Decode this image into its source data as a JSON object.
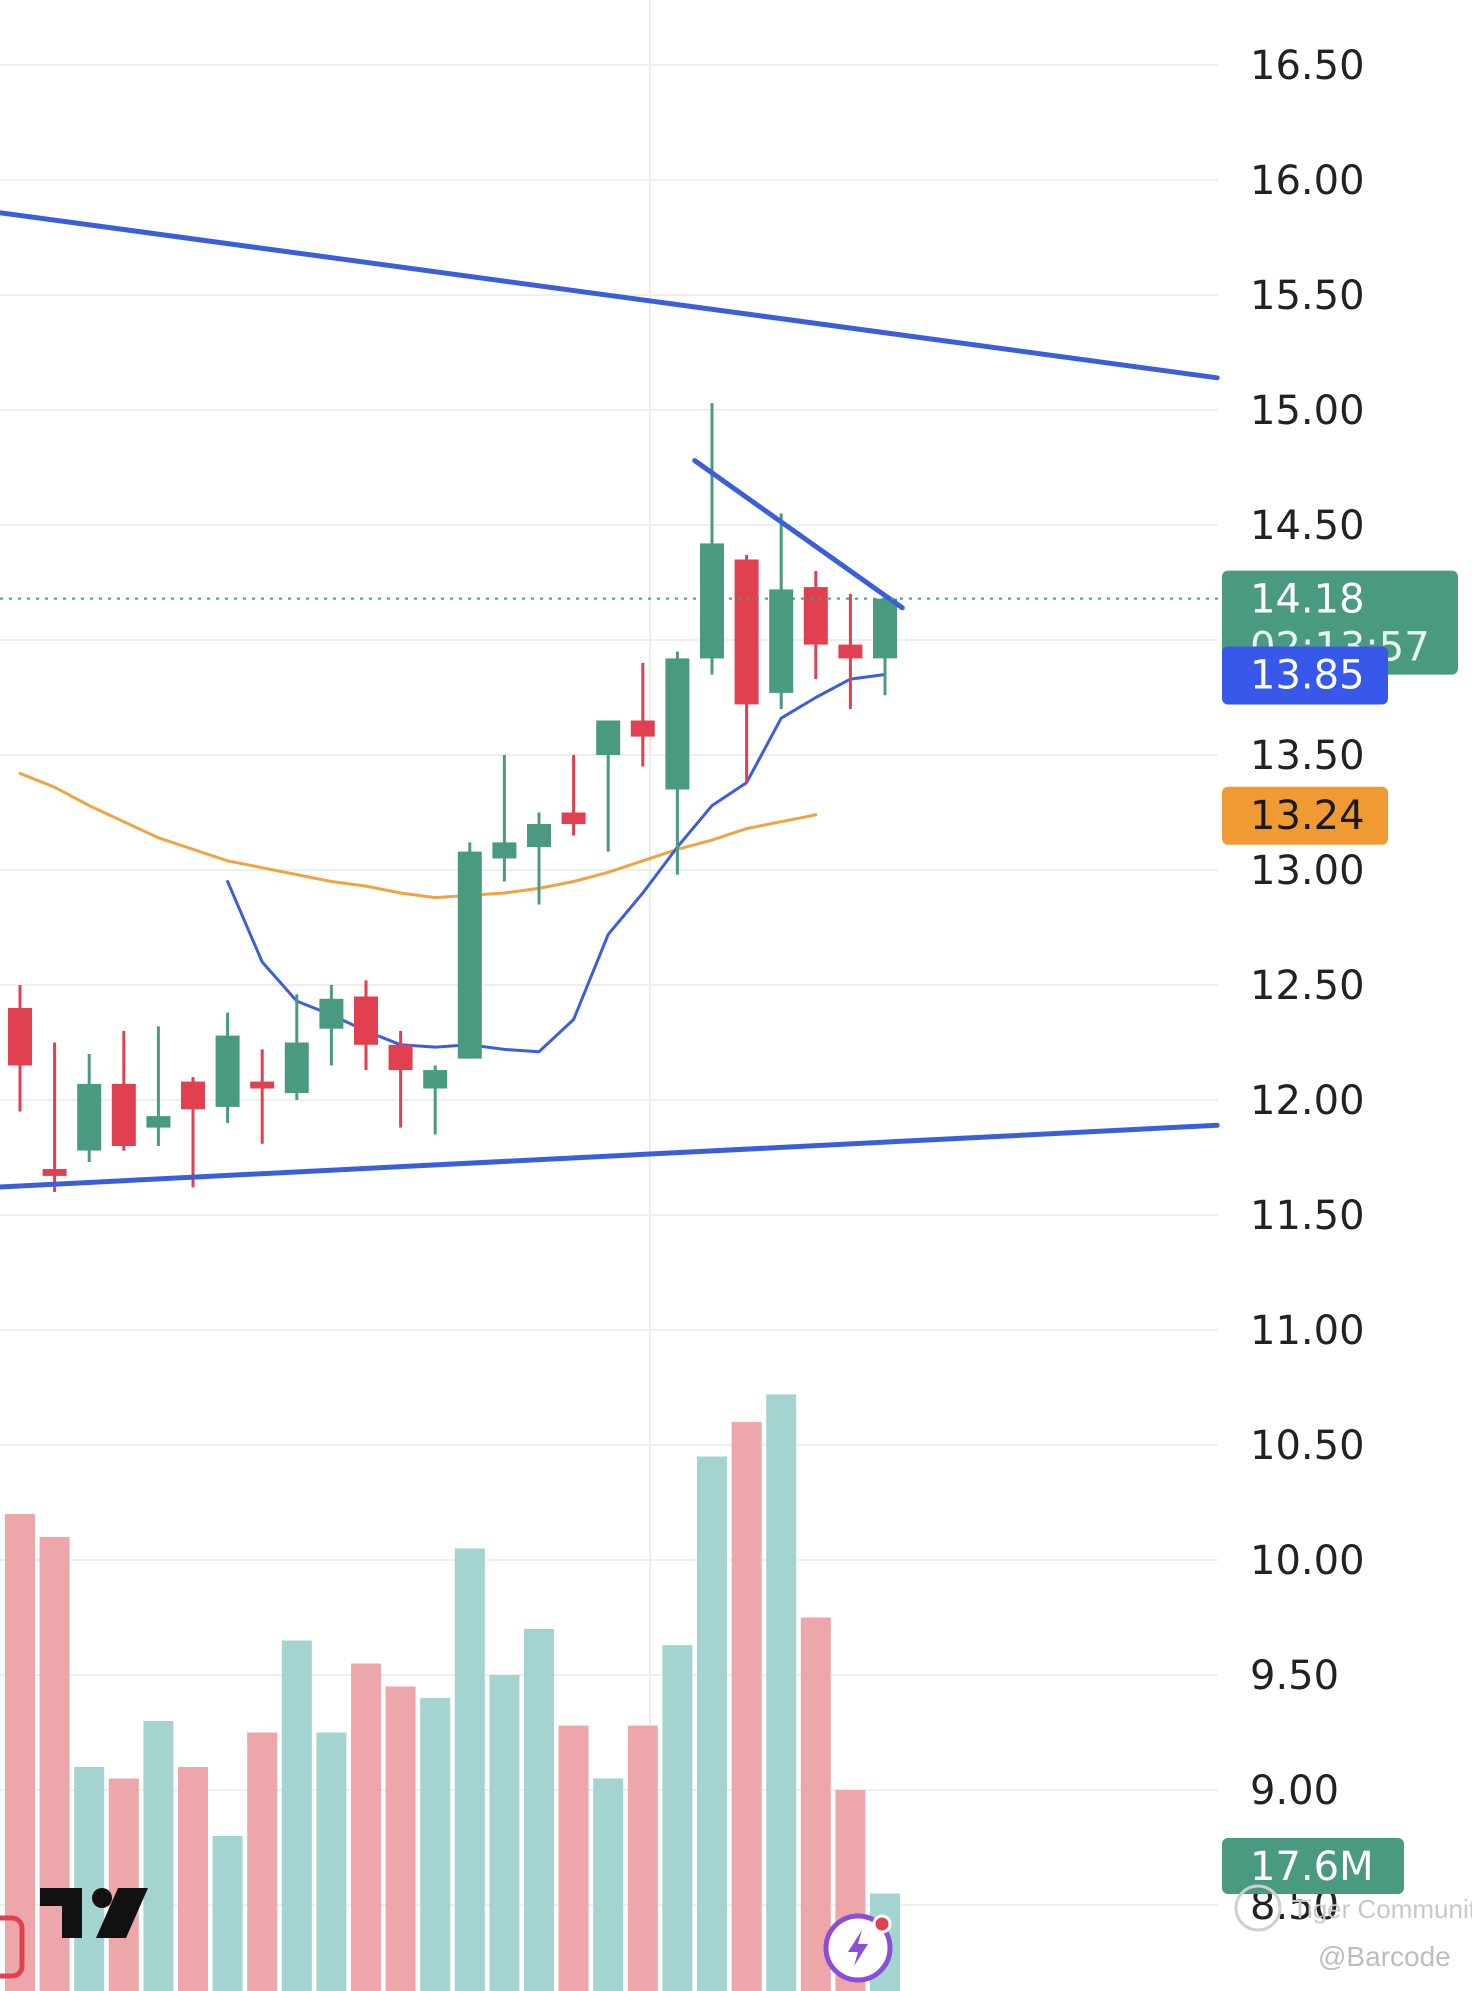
{
  "chart_data": {
    "type": "candlestick",
    "price_axis": {
      "ticks": [
        "16.50",
        "16.00",
        "15.50",
        "15.00",
        "14.50",
        "14.00",
        "13.50",
        "13.00",
        "12.50",
        "12.00",
        "11.50",
        "11.00",
        "10.50",
        "10.00",
        "9.50",
        "9.00",
        "8.50"
      ],
      "range": [
        8.2,
        16.75
      ]
    },
    "last_price": "14.18",
    "countdown": "02:13:57",
    "ma_fast_value": "13.85",
    "ma_slow_value": "13.24",
    "volume_label": "17.6M",
    "candles": [
      {
        "o": 12.4,
        "h": 12.5,
        "l": 11.95,
        "c": 12.15
      },
      {
        "o": 11.7,
        "h": 12.25,
        "l": 11.6,
        "c": 11.67
      },
      {
        "o": 11.78,
        "h": 12.2,
        "l": 11.73,
        "c": 12.07
      },
      {
        "o": 12.07,
        "h": 12.3,
        "l": 11.78,
        "c": 11.8
      },
      {
        "o": 11.88,
        "h": 12.32,
        "l": 11.8,
        "c": 11.93
      },
      {
        "o": 12.08,
        "h": 12.1,
        "l": 11.62,
        "c": 11.96
      },
      {
        "o": 11.97,
        "h": 12.38,
        "l": 11.9,
        "c": 12.28
      },
      {
        "o": 12.08,
        "h": 12.22,
        "l": 11.81,
        "c": 12.05
      },
      {
        "o": 12.03,
        "h": 12.46,
        "l": 12.0,
        "c": 12.25
      },
      {
        "o": 12.31,
        "h": 12.5,
        "l": 12.15,
        "c": 12.44
      },
      {
        "o": 12.45,
        "h": 12.52,
        "l": 12.13,
        "c": 12.24
      },
      {
        "o": 12.24,
        "h": 12.3,
        "l": 11.88,
        "c": 12.13
      },
      {
        "o": 12.05,
        "h": 12.15,
        "l": 11.85,
        "c": 12.13
      },
      {
        "o": 12.18,
        "h": 13.12,
        "l": 12.18,
        "c": 13.08
      },
      {
        "o": 13.05,
        "h": 13.5,
        "l": 12.95,
        "c": 13.12
      },
      {
        "o": 13.1,
        "h": 13.25,
        "l": 12.85,
        "c": 13.2
      },
      {
        "o": 13.25,
        "h": 13.5,
        "l": 13.15,
        "c": 13.2
      },
      {
        "o": 13.5,
        "h": 13.65,
        "l": 13.08,
        "c": 13.65
      },
      {
        "o": 13.65,
        "h": 13.9,
        "l": 13.45,
        "c": 13.58
      },
      {
        "o": 13.35,
        "h": 13.95,
        "l": 12.98,
        "c": 13.92
      },
      {
        "o": 13.92,
        "h": 15.03,
        "l": 13.85,
        "c": 14.42
      },
      {
        "o": 14.35,
        "h": 14.37,
        "l": 13.38,
        "c": 13.72
      },
      {
        "o": 13.77,
        "h": 14.55,
        "l": 13.7,
        "c": 14.22
      },
      {
        "o": 14.23,
        "h": 14.3,
        "l": 13.83,
        "c": 13.98
      },
      {
        "o": 13.98,
        "h": 14.2,
        "l": 13.7,
        "c": 13.92
      },
      {
        "o": 13.92,
        "h": 14.2,
        "l": 13.76,
        "c": 14.18
      }
    ],
    "ma_fast": [
      12.95,
      12.6,
      12.43,
      12.37,
      12.3,
      12.24,
      12.23,
      12.24,
      12.22,
      12.21,
      12.35,
      12.72,
      12.9,
      13.1,
      13.28,
      13.38,
      13.66,
      13.75,
      13.83,
      13.85
    ],
    "ma_slow_x_start": 0,
    "ma_slow": [
      13.42,
      13.36,
      13.28,
      13.21,
      13.14,
      13.09,
      13.04,
      13.01,
      12.98,
      12.95,
      12.93,
      12.9,
      12.88,
      12.89,
      12.9,
      12.92,
      12.95,
      12.99,
      13.04,
      13.09,
      13.13,
      13.18,
      13.21,
      13.24
    ],
    "volume": [
      {
        "v": 10.2,
        "up": false
      },
      {
        "v": 10.1,
        "up": false
      },
      {
        "v": 9.1,
        "up": true
      },
      {
        "v": 9.05,
        "up": false
      },
      {
        "v": 9.3,
        "up": true
      },
      {
        "v": 9.1,
        "up": false
      },
      {
        "v": 8.8,
        "up": true
      },
      {
        "v": 9.25,
        "up": false
      },
      {
        "v": 9.65,
        "up": true
      },
      {
        "v": 9.25,
        "up": true
      },
      {
        "v": 9.55,
        "up": false
      },
      {
        "v": 9.45,
        "up": false
      },
      {
        "v": 9.4,
        "up": true
      },
      {
        "v": 10.05,
        "up": true
      },
      {
        "v": 9.5,
        "up": true
      },
      {
        "v": 9.7,
        "up": true
      },
      {
        "v": 9.28,
        "up": false
      },
      {
        "v": 9.05,
        "up": true
      },
      {
        "v": 9.28,
        "up": false
      },
      {
        "v": 9.63,
        "up": true
      },
      {
        "v": 10.45,
        "up": true
      },
      {
        "v": 10.6,
        "up": false
      },
      {
        "v": 10.72,
        "up": true
      },
      {
        "v": 9.75,
        "up": false
      },
      {
        "v": 9.0,
        "up": false
      },
      {
        "v": 8.55,
        "up": true
      }
    ],
    "trendlines": [
      {
        "from": [
          -10,
          16.05
        ],
        "to": [
          34.6,
          15.14
        ],
        "name": "upper-channel"
      },
      {
        "from": [
          -10,
          11.55
        ],
        "to": [
          34.6,
          11.89
        ],
        "name": "lower-channel"
      },
      {
        "from": [
          19.5,
          14.78
        ],
        "to": [
          25.5,
          14.14
        ],
        "name": "short-resistance"
      }
    ],
    "grid": true
  },
  "colors": {
    "up": "#4a9a82",
    "down": "#e0404f",
    "vol_up": "#a4d4cf",
    "vol_down": "#eda7aa",
    "trend": "#3b5fd9",
    "ma_fast": "#3b5fd9",
    "ma_slow": "#f0a441",
    "last_price_bg": "#4a9a82",
    "ma_fast_bg": "#3758e8",
    "ma_slow_bg": "#f09a33",
    "vol_bg": "#4a9a82",
    "grid": "#efefef"
  },
  "watermark": {
    "brand": "Tiger Community",
    "handle": "@Barcode"
  },
  "icons": {
    "logo": "tradingview-logo",
    "flash": "lightning-icon"
  }
}
